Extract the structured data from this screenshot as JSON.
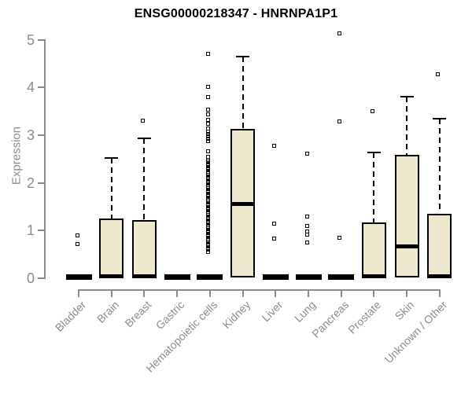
{
  "page": {
    "background": "#ffffff"
  },
  "chart_data": {
    "type": "boxplot",
    "title": "ENSG00000218347 - HNRNPA1P1",
    "xlabel": "",
    "ylabel": "Expression",
    "ylim": [
      0,
      5
    ],
    "yticks": [
      0,
      1,
      2,
      3,
      4,
      5
    ],
    "grid": false,
    "legend": "none",
    "colors": {
      "box_fill": "#EDE8CE",
      "box_border": "#000000",
      "median": "#000000",
      "whisker": "#000000",
      "outlier": "#000000",
      "axis": "#8C8C8C",
      "title": "#000000"
    },
    "categories": [
      "Bladder",
      "Brain",
      "Breast",
      "Gastric",
      "Hematopoietic cells",
      "Kidney",
      "Liver",
      "Lung",
      "Pancreas",
      "Prostate",
      "Skin",
      "Unknown / Other"
    ],
    "boxes": [
      {
        "category": "Bladder",
        "q1": 0,
        "median": 0.02,
        "q3": 0.04,
        "whisker_low": 0,
        "whisker_high": 0.04,
        "outliers": [
          0.9,
          0.72
        ]
      },
      {
        "category": "Brain",
        "q1": 0.02,
        "median": 0.04,
        "q3": 1.26,
        "whisker_low": 0,
        "whisker_high": 2.53,
        "outliers": []
      },
      {
        "category": "Breast",
        "q1": 0.02,
        "median": 0.04,
        "q3": 1.22,
        "whisker_low": 0,
        "whisker_high": 2.93,
        "outliers": [
          3.31
        ]
      },
      {
        "category": "Gastric",
        "q1": 0,
        "median": 0.02,
        "q3": 0.04,
        "whisker_low": 0,
        "whisker_high": 0.04,
        "outliers": []
      },
      {
        "category": "Hematopoietic cells",
        "q1": 0,
        "median": 0.02,
        "q3": 0.04,
        "whisker_low": 0,
        "whisker_high": 0.04,
        "outliers": [
          0.56,
          0.6,
          0.64,
          0.68,
          0.72,
          0.76,
          0.8,
          0.84,
          0.88,
          0.92,
          0.96,
          1.0,
          1.04,
          1.08,
          1.12,
          1.16,
          1.2,
          1.24,
          1.28,
          1.32,
          1.36,
          1.4,
          1.44,
          1.48,
          1.52,
          1.56,
          1.6,
          1.64,
          1.68,
          1.72,
          1.76,
          1.8,
          1.84,
          1.88,
          1.92,
          1.96,
          2.0,
          2.04,
          2.08,
          2.12,
          2.16,
          2.2,
          2.24,
          2.28,
          2.32,
          2.36,
          2.4,
          2.44,
          2.48,
          2.54,
          2.67,
          2.88,
          2.93,
          2.98,
          3.03,
          3.08,
          3.14,
          3.24,
          3.33,
          3.43,
          3.53,
          3.8,
          4.02,
          4.71
        ]
      },
      {
        "category": "Kidney",
        "q1": 0.02,
        "median": 1.55,
        "q3": 3.13,
        "whisker_low": 0,
        "whisker_high": 4.65,
        "outliers": []
      },
      {
        "category": "Liver",
        "q1": 0,
        "median": 0.02,
        "q3": 0.04,
        "whisker_low": 0,
        "whisker_high": 0.04,
        "outliers": [
          2.77,
          1.14,
          0.84
        ]
      },
      {
        "category": "Lung",
        "q1": 0,
        "median": 0.02,
        "q3": 0.04,
        "whisker_low": 0,
        "whisker_high": 0.04,
        "outliers": [
          2.62,
          1.29,
          1.1,
          0.98,
          0.92,
          0.75
        ]
      },
      {
        "category": "Pancreas",
        "q1": 0,
        "median": 0.02,
        "q3": 0.04,
        "whisker_low": 0,
        "whisker_high": 0.04,
        "outliers": [
          5.13,
          3.29,
          0.85
        ]
      },
      {
        "category": "Prostate",
        "q1": 0.02,
        "median": 0.04,
        "q3": 1.17,
        "whisker_low": 0,
        "whisker_high": 2.63,
        "outliers": [
          3.51
        ]
      },
      {
        "category": "Skin",
        "q1": 0.02,
        "median": 0.66,
        "q3": 2.58,
        "whisker_low": 0,
        "whisker_high": 3.8,
        "outliers": []
      },
      {
        "category": "Unknown / Other",
        "q1": 0.02,
        "median": 0.04,
        "q3": 1.36,
        "whisker_low": 0,
        "whisker_high": 3.35,
        "outliers": [
          4.27
        ]
      }
    ]
  }
}
